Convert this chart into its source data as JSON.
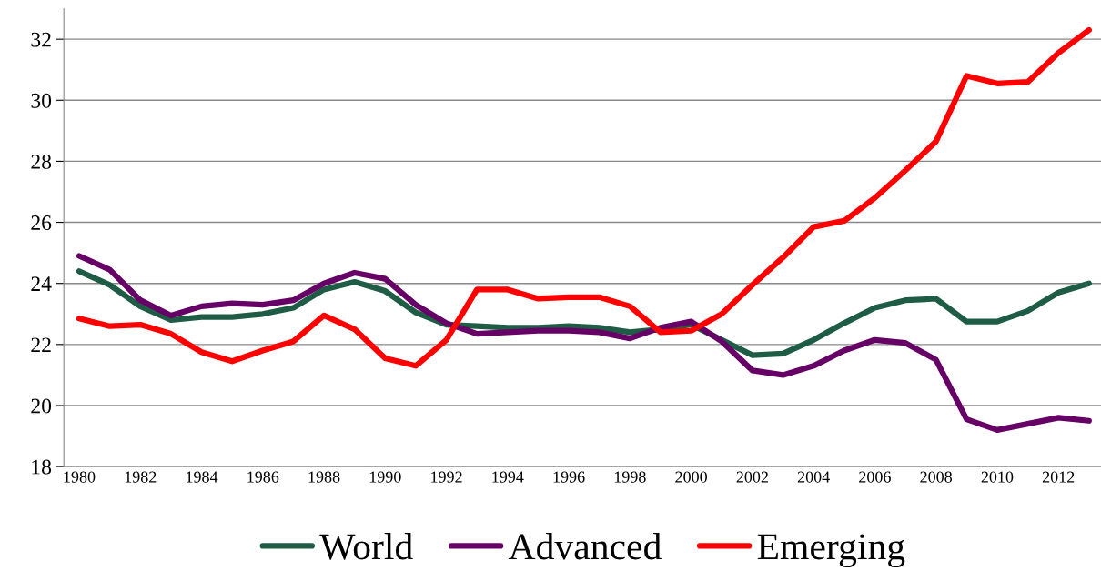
{
  "chart_data": {
    "type": "line",
    "categories": [
      "1980",
      null,
      "1982",
      null,
      "1984",
      null,
      "1986",
      null,
      "1988",
      null,
      "1990",
      null,
      "1992",
      null,
      "1994",
      null,
      "1996",
      null,
      "1998",
      null,
      "2000",
      null,
      "2002",
      null,
      "2004",
      null,
      "2006",
      null,
      "2008",
      null,
      "2010",
      null,
      "2012",
      null
    ],
    "series": [
      {
        "name": "World",
        "color": "#1e5c45",
        "values": [
          24.4,
          23.95,
          23.25,
          22.8,
          22.9,
          22.9,
          23.0,
          23.2,
          23.8,
          24.05,
          23.75,
          23.05,
          22.65,
          22.6,
          22.55,
          22.55,
          22.6,
          22.55,
          22.4,
          22.5,
          22.65,
          22.15,
          21.65,
          21.7,
          22.15,
          22.7,
          23.2,
          23.45,
          23.5,
          22.75,
          22.75,
          23.1,
          23.7,
          24.0
        ]
      },
      {
        "name": "Advanced",
        "color": "#660066",
        "values": [
          24.9,
          24.45,
          23.45,
          22.95,
          23.25,
          23.35,
          23.3,
          23.45,
          24.0,
          24.35,
          24.15,
          23.3,
          22.7,
          22.35,
          22.4,
          22.45,
          22.45,
          22.4,
          22.2,
          22.55,
          22.75,
          22.1,
          21.15,
          21.0,
          21.3,
          21.8,
          22.15,
          22.05,
          21.5,
          19.55,
          19.2,
          19.4,
          19.6,
          19.5
        ]
      },
      {
        "name": "Emerging",
        "color": "#ff0000",
        "values": [
          22.85,
          22.6,
          22.65,
          22.35,
          21.75,
          21.45,
          21.8,
          22.1,
          22.95,
          22.5,
          21.55,
          21.3,
          22.15,
          23.8,
          23.8,
          23.5,
          23.55,
          23.55,
          23.25,
          22.4,
          22.45,
          23.0,
          23.95,
          24.85,
          25.85,
          26.05,
          26.8,
          27.7,
          28.65,
          30.8,
          30.55,
          30.6,
          31.55,
          32.3
        ]
      }
    ],
    "ylim": [
      18,
      33
    ],
    "yticks": [
      18,
      20,
      22,
      24,
      26,
      28,
      30,
      32
    ],
    "grid": "y",
    "legend": "bottom",
    "marker": "none",
    "line_style": "solid"
  }
}
